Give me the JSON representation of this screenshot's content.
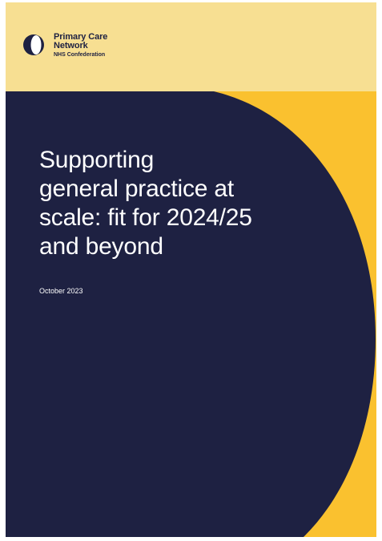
{
  "logo": {
    "line1": "Primary Care",
    "line2": "Network",
    "line3": "NHS Confederation"
  },
  "cover": {
    "title_lines": [
      "Supporting",
      "general practice at",
      "scale: fit for 2024/25",
      "and beyond"
    ],
    "date": "October 2023"
  },
  "colors": {
    "yellow": "#fac12f",
    "pale_yellow": "#f7df92",
    "navy": "#1e2142"
  }
}
